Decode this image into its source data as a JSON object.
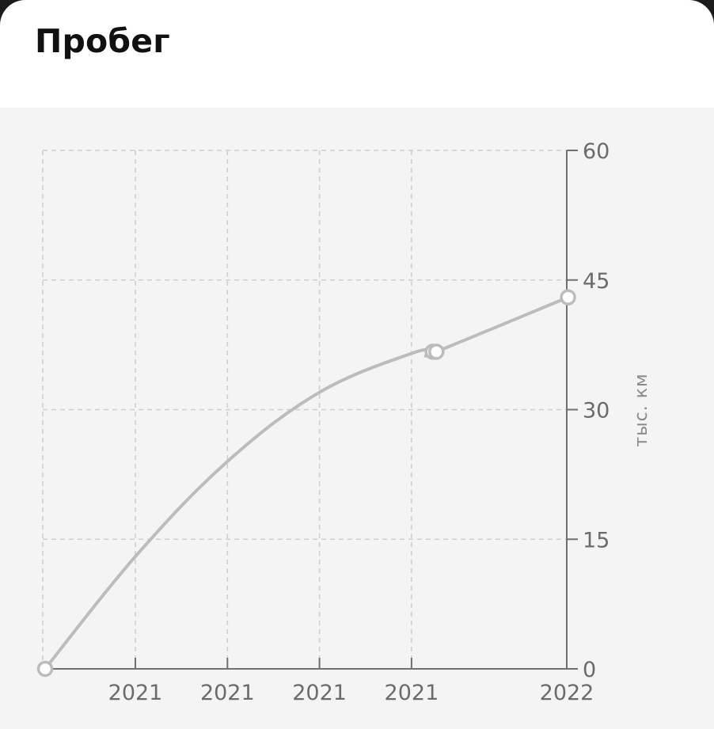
{
  "header": {
    "title": "Пробег"
  },
  "colors": {
    "line": "#bcbcbc",
    "grid": "#cfcfcf",
    "axis": "#707070",
    "panel": "#f4f4f4",
    "marker_fill": "#ffffff",
    "marker_stroke": "#bcbcbc"
  },
  "chart_data": {
    "type": "line",
    "title": "",
    "ylabel": "тыс. км",
    "xlabel": "",
    "y_axis_side": "right",
    "ylim": [
      0,
      60
    ],
    "y_ticks": [
      0,
      15,
      30,
      45,
      60
    ],
    "y_tick_labels": [
      "0",
      "15",
      "30",
      "45",
      "60"
    ],
    "x_tick_labels": [
      "2021",
      "2021",
      "2021",
      "2021",
      "2022"
    ],
    "grid": true,
    "smooth": true,
    "series": [
      {
        "markers": [
          true,
          false,
          false,
          false,
          false,
          true,
          true,
          true
        ],
        "x_tick_index": [
          -0.98,
          0.0,
          1.0,
          2.0,
          3.0,
          3.23,
          3.27,
          4.7
        ],
        "values": [
          0,
          13,
          24,
          32,
          36.5,
          36.7,
          36.7,
          43
        ]
      }
    ]
  }
}
